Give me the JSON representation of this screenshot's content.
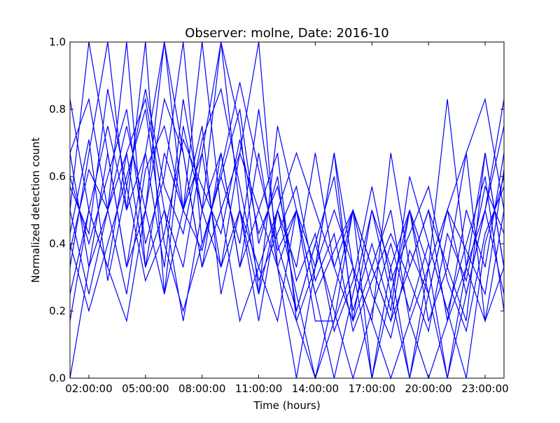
{
  "chart_data": {
    "type": "line",
    "title": "Observer: molne, Date: 2016-10",
    "xlabel": "Time (hours)",
    "ylabel": "Normalized detection count",
    "x_unit": "hours",
    "xlim": [
      1,
      24
    ],
    "ylim": [
      0,
      1
    ],
    "x_ticks": [
      {
        "value": 2,
        "label": "02:00:00"
      },
      {
        "value": 5,
        "label": "05:00:00"
      },
      {
        "value": 8,
        "label": "08:00:00"
      },
      {
        "value": 11,
        "label": "11:00:00"
      },
      {
        "value": 14,
        "label": "14:00:00"
      },
      {
        "value": 17,
        "label": "17:00:00"
      },
      {
        "value": 20,
        "label": "20:00:00"
      },
      {
        "value": 23,
        "label": "23:00:00"
      }
    ],
    "y_ticks": [
      {
        "value": 0.0,
        "label": "0.0"
      },
      {
        "value": 0.2,
        "label": "0.2"
      },
      {
        "value": 0.4,
        "label": "0.4"
      },
      {
        "value": 0.6,
        "label": "0.6"
      },
      {
        "value": 0.8,
        "label": "0.8"
      },
      {
        "value": 1.0,
        "label": "1.0"
      }
    ],
    "grid": false,
    "legend": "none",
    "line_color": "#0000ff",
    "x": [
      1,
      2,
      3,
      4,
      5,
      6,
      7,
      8,
      9,
      10,
      11,
      12,
      13,
      14,
      15,
      16,
      17,
      18,
      19,
      20,
      21,
      22,
      23,
      24
    ],
    "series": [
      {
        "values": [
          0.83,
          0.5,
          0.33,
          0.67,
          0.83,
          0.5,
          0.33,
          0.67,
          1.0,
          0.5,
          0.33,
          0.17,
          0.5,
          0.33,
          0.67,
          0.17,
          0.33,
          0.5,
          0.17,
          0.33,
          0.5,
          0.67,
          0.83,
          0.5
        ]
      },
      {
        "values": [
          0.5,
          1.0,
          0.67,
          0.33,
          0.5,
          1.0,
          0.5,
          0.67,
          0.33,
          0.5,
          0.17,
          0.5,
          0.33,
          0.67,
          0.33,
          0.17,
          0.5,
          0.33,
          0.5,
          0.17,
          0.33,
          0.17,
          0.67,
          0.33
        ]
      },
      {
        "values": [
          0.33,
          0.67,
          1.0,
          0.5,
          0.67,
          0.33,
          0.83,
          0.5,
          0.67,
          0.33,
          0.5,
          0.67,
          0.17,
          0.33,
          0.5,
          0.33,
          0.17,
          0.67,
          0.33,
          0.5,
          0.17,
          0.5,
          0.33,
          0.67
        ]
      },
      {
        "values": [
          0.67,
          0.33,
          0.5,
          1.0,
          0.33,
          0.67,
          0.5,
          1.0,
          0.5,
          0.67,
          1.0,
          0.33,
          0.5,
          0.17,
          0.17,
          0.5,
          0.33,
          0.17,
          0.5,
          0.33,
          0.83,
          0.33,
          0.17,
          0.5
        ]
      },
      {
        "values": [
          0.25,
          0.5,
          0.75,
          0.5,
          1.0,
          0.25,
          0.5,
          0.75,
          0.25,
          0.5,
          0.25,
          0.75,
          0.5,
          0.25,
          0.0,
          0.25,
          0.5,
          0.25,
          0.0,
          0.25,
          0.5,
          0.25,
          0.5,
          0.75
        ]
      },
      {
        "values": [
          0.6,
          0.4,
          0.6,
          0.8,
          0.4,
          0.6,
          1.0,
          0.4,
          0.6,
          0.8,
          0.4,
          0.6,
          0.2,
          0.4,
          0.6,
          0.2,
          0.4,
          0.2,
          0.6,
          0.4,
          0.2,
          0.4,
          0.6,
          0.2
        ]
      },
      {
        "values": [
          0.43,
          0.71,
          0.29,
          0.57,
          0.86,
          0.57,
          0.43,
          0.71,
          0.86,
          0.57,
          0.29,
          0.43,
          0.57,
          0.29,
          0.43,
          0.14,
          0.29,
          0.43,
          0.29,
          0.14,
          0.43,
          0.29,
          0.57,
          0.43
        ]
      },
      {
        "values": [
          0.0,
          0.33,
          0.67,
          0.33,
          0.67,
          1.0,
          0.67,
          0.33,
          0.67,
          0.33,
          0.67,
          0.33,
          0.0,
          0.33,
          0.67,
          0.33,
          0.0,
          0.33,
          0.0,
          0.33,
          0.0,
          0.33,
          0.67,
          0.33
        ]
      },
      {
        "values": [
          0.5,
          0.25,
          0.5,
          0.75,
          0.5,
          0.25,
          0.75,
          0.5,
          1.0,
          0.75,
          0.25,
          0.5,
          0.25,
          0.0,
          0.25,
          0.5,
          0.0,
          0.25,
          0.5,
          0.25,
          0.0,
          0.25,
          0.5,
          0.25
        ]
      },
      {
        "values": [
          0.38,
          0.62,
          0.5,
          0.25,
          0.62,
          0.75,
          0.5,
          0.38,
          0.62,
          0.88,
          0.62,
          0.38,
          0.5,
          0.25,
          0.38,
          0.5,
          0.25,
          0.12,
          0.38,
          0.25,
          0.5,
          0.38,
          0.25,
          0.62
        ]
      },
      {
        "values": [
          0.57,
          0.43,
          0.86,
          0.57,
          0.29,
          0.43,
          0.71,
          0.57,
          0.43,
          0.71,
          0.43,
          0.57,
          0.29,
          0.43,
          0.14,
          0.29,
          0.57,
          0.29,
          0.43,
          0.57,
          0.29,
          0.14,
          0.43,
          0.57
        ]
      },
      {
        "values": [
          0.17,
          0.5,
          0.33,
          0.17,
          0.5,
          0.83,
          0.67,
          0.33,
          0.5,
          0.17,
          0.33,
          0.5,
          0.67,
          0.5,
          0.33,
          0.5,
          0.33,
          0.17,
          0.33,
          0.5,
          0.33,
          0.67,
          0.17,
          0.33
        ]
      },
      {
        "values": [
          0.67,
          0.83,
          0.5,
          0.67,
          0.33,
          0.5,
          0.17,
          0.5,
          0.33,
          0.67,
          0.5,
          0.33,
          0.17,
          0.0,
          0.17,
          0.33,
          0.17,
          0.0,
          0.17,
          0.0,
          0.17,
          0.33,
          0.5,
          0.83
        ]
      },
      {
        "values": [
          0.4,
          0.2,
          0.4,
          0.6,
          0.8,
          0.4,
          0.2,
          0.4,
          0.6,
          0.4,
          0.8,
          0.4,
          0.2,
          0.4,
          0.2,
          0.0,
          0.2,
          0.4,
          0.2,
          0.4,
          0.2,
          0.0,
          0.4,
          0.6
        ]
      }
    ]
  }
}
